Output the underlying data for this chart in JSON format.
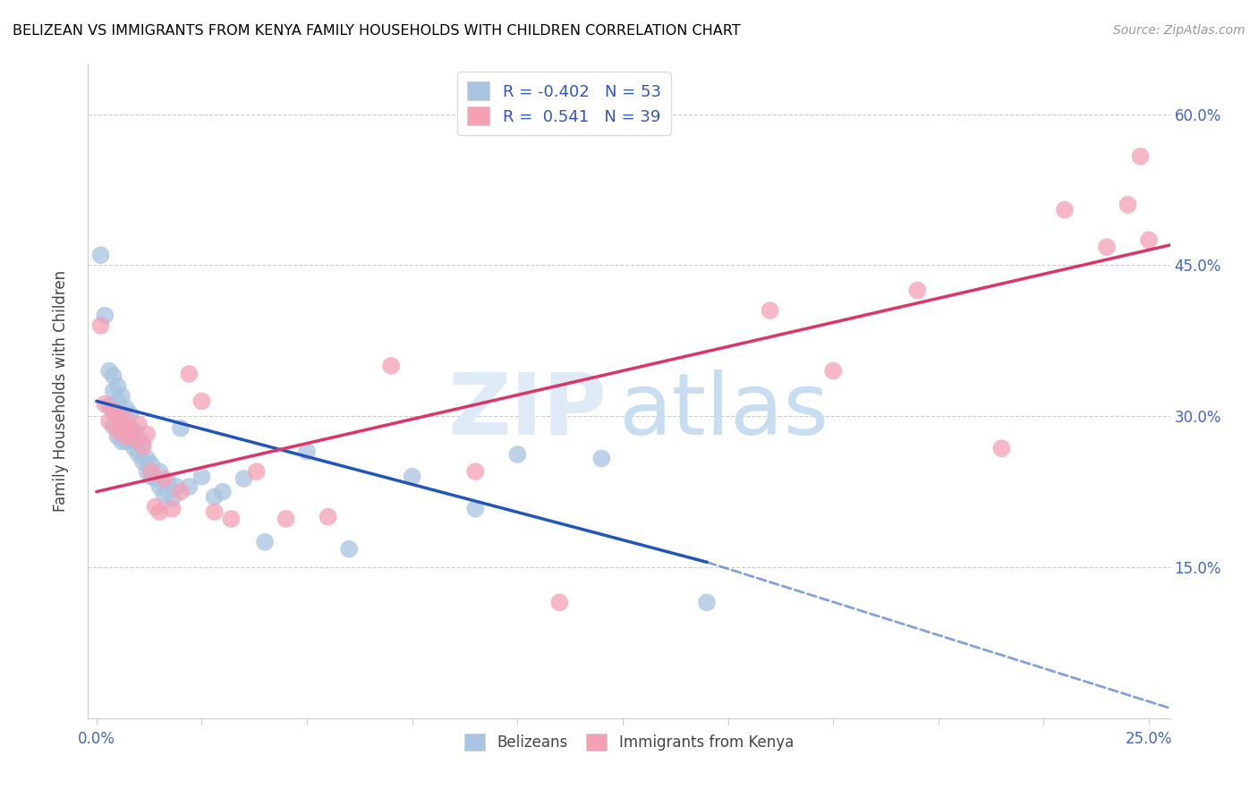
{
  "title": "BELIZEAN VS IMMIGRANTS FROM KENYA FAMILY HOUSEHOLDS WITH CHILDREN CORRELATION CHART",
  "source": "Source: ZipAtlas.com",
  "ylabel": "Family Households with Children",
  "x_min": -0.002,
  "x_max": 0.255,
  "y_min": 0.0,
  "y_max": 0.65,
  "x_ticks": [
    0.0,
    0.025,
    0.05,
    0.075,
    0.1,
    0.125,
    0.15,
    0.175,
    0.2,
    0.225,
    0.25
  ],
  "y_ticks": [
    0.15,
    0.3,
    0.45,
    0.6
  ],
  "y_tick_labels_right": [
    "15.0%",
    "30.0%",
    "45.0%",
    "60.0%"
  ],
  "legend_label1": "R = -0.402   N = 53",
  "legend_label2": "R =  0.541   N = 39",
  "belizean_color": "#a8c4e0",
  "kenya_color": "#f4a0b5",
  "belizean_line_color": "#2255bb",
  "kenya_line_color": "#dd3366",
  "watermark_zip": "ZIP",
  "watermark_atlas": "atlas",
  "belizean_x": [
    0.001,
    0.002,
    0.003,
    0.003,
    0.004,
    0.004,
    0.004,
    0.004,
    0.005,
    0.005,
    0.005,
    0.005,
    0.006,
    0.006,
    0.006,
    0.006,
    0.007,
    0.007,
    0.007,
    0.008,
    0.008,
    0.008,
    0.009,
    0.009,
    0.01,
    0.01,
    0.011,
    0.011,
    0.012,
    0.012,
    0.013,
    0.013,
    0.014,
    0.015,
    0.015,
    0.016,
    0.017,
    0.018,
    0.019,
    0.02,
    0.022,
    0.025,
    0.028,
    0.03,
    0.035,
    0.04,
    0.05,
    0.06,
    0.075,
    0.09,
    0.1,
    0.12,
    0.145
  ],
  "belizean_y": [
    0.46,
    0.4,
    0.31,
    0.345,
    0.29,
    0.31,
    0.325,
    0.34,
    0.28,
    0.298,
    0.315,
    0.33,
    0.275,
    0.29,
    0.305,
    0.32,
    0.275,
    0.29,
    0.308,
    0.275,
    0.288,
    0.302,
    0.268,
    0.285,
    0.262,
    0.278,
    0.255,
    0.272,
    0.245,
    0.258,
    0.24,
    0.252,
    0.238,
    0.23,
    0.245,
    0.222,
    0.235,
    0.218,
    0.23,
    0.288,
    0.23,
    0.24,
    0.22,
    0.225,
    0.238,
    0.175,
    0.265,
    0.168,
    0.24,
    0.208,
    0.262,
    0.258,
    0.115
  ],
  "kenya_x": [
    0.001,
    0.002,
    0.003,
    0.004,
    0.005,
    0.005,
    0.006,
    0.007,
    0.007,
    0.008,
    0.009,
    0.01,
    0.011,
    0.012,
    0.013,
    0.014,
    0.015,
    0.016,
    0.018,
    0.02,
    0.022,
    0.025,
    0.028,
    0.032,
    0.038,
    0.045,
    0.055,
    0.07,
    0.09,
    0.11,
    0.16,
    0.175,
    0.195,
    0.215,
    0.23,
    0.24,
    0.245,
    0.248,
    0.25
  ],
  "kenya_y": [
    0.39,
    0.312,
    0.295,
    0.305,
    0.285,
    0.302,
    0.29,
    0.28,
    0.298,
    0.285,
    0.278,
    0.292,
    0.27,
    0.282,
    0.245,
    0.21,
    0.205,
    0.238,
    0.208,
    0.225,
    0.342,
    0.315,
    0.205,
    0.198,
    0.245,
    0.198,
    0.2,
    0.35,
    0.245,
    0.115,
    0.405,
    0.345,
    0.425,
    0.268,
    0.505,
    0.468,
    0.51,
    0.558,
    0.475
  ]
}
